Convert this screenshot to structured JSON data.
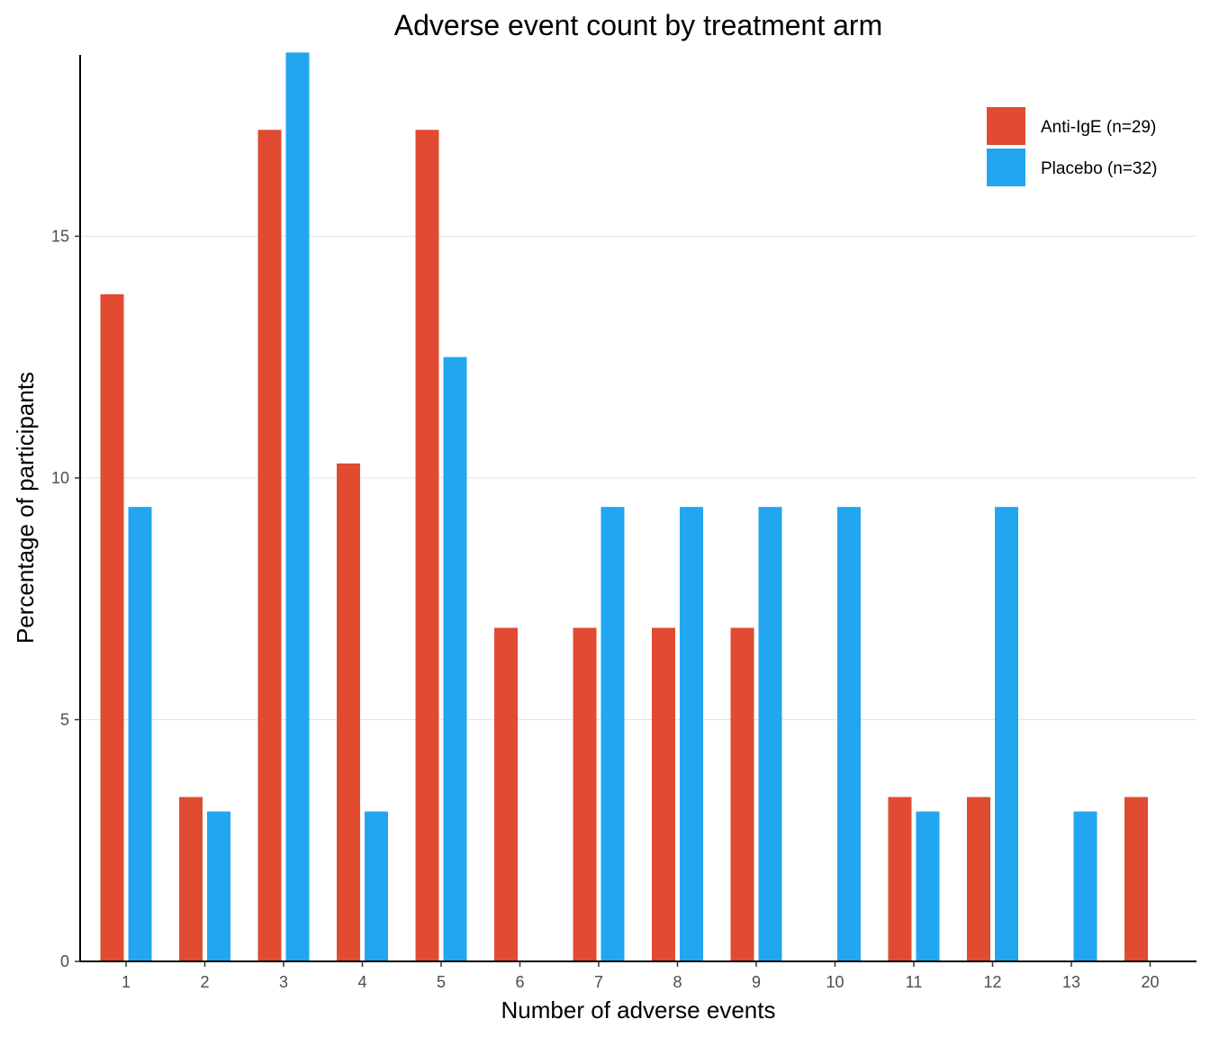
{
  "chart_data": {
    "type": "bar",
    "title": "Adverse event count by treatment arm",
    "xlabel": "Number of adverse events",
    "ylabel": "Percentage of participants",
    "categories": [
      "1",
      "2",
      "3",
      "4",
      "5",
      "6",
      "7",
      "8",
      "9",
      "10",
      "11",
      "12",
      "13",
      "20"
    ],
    "series": [
      {
        "name": "Anti-IgE (n=29)",
        "color": "#e04b32",
        "values": [
          13.8,
          3.4,
          17.2,
          10.3,
          17.2,
          6.9,
          6.9,
          6.9,
          6.9,
          null,
          3.4,
          3.4,
          null,
          3.4
        ]
      },
      {
        "name": "Placebo (n=32)",
        "color": "#22a6ef",
        "values": [
          9.4,
          3.1,
          18.8,
          3.1,
          12.5,
          null,
          9.4,
          9.4,
          9.4,
          9.4,
          3.1,
          9.4,
          3.1,
          null
        ]
      }
    ],
    "yticks": [
      0,
      5,
      10,
      15
    ],
    "ylim": [
      0,
      18.75
    ],
    "grid": "horizontal major lines",
    "legend_position": "top-right"
  }
}
